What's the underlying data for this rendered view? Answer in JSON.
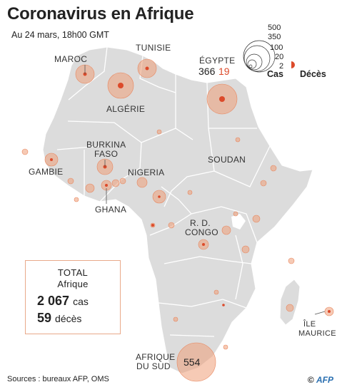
{
  "title": "Coronavirus en Afrique",
  "subtitle": "Au 24 mars, 18h00 GMT",
  "colors": {
    "land": "#dcdcdc",
    "border": "#ffffff",
    "cases": "#ef9f79",
    "deaths": "#dc4a2a"
  },
  "legend": {
    "values": [
      "500",
      "350",
      "100",
      "20",
      "2"
    ],
    "cases_label": "Cas",
    "deaths_label": "Décès"
  },
  "countries": [
    {
      "key": "maroc",
      "label": "MAROC"
    },
    {
      "key": "tunisie",
      "label": "TUNISIE"
    },
    {
      "key": "algerie",
      "label": "ALGÉRIE"
    },
    {
      "key": "egypte",
      "label": "ÉGYPTE",
      "cases": "366",
      "deaths": "19"
    },
    {
      "key": "burkina",
      "label_line1": "BURKINA",
      "label_line2": "FASO"
    },
    {
      "key": "gambie",
      "label": "GAMBIE"
    },
    {
      "key": "nigeria",
      "label": "NIGERIA"
    },
    {
      "key": "soudan",
      "label": "SOUDAN"
    },
    {
      "key": "ghana",
      "label": "GHANA"
    },
    {
      "key": "rdc",
      "label_line1": "R. D.",
      "label_line2": "CONGO"
    },
    {
      "key": "maurice",
      "label_line1": "ÎLE",
      "label_line2": "MAURICE"
    },
    {
      "key": "afriquesud",
      "label_line1": "AFRIQUE",
      "label_line2": "DU SUD",
      "cases": "554"
    }
  ],
  "total": {
    "title_line1": "TOTAL",
    "title_line2": "Afrique",
    "cases_value": "2 067",
    "cases_unit": "cas",
    "deaths_value": "59",
    "deaths_unit": "décès"
  },
  "source": "Sources : bureaux AFP, OMS",
  "credit": {
    "copyright": "©",
    "agency": "AFP"
  }
}
